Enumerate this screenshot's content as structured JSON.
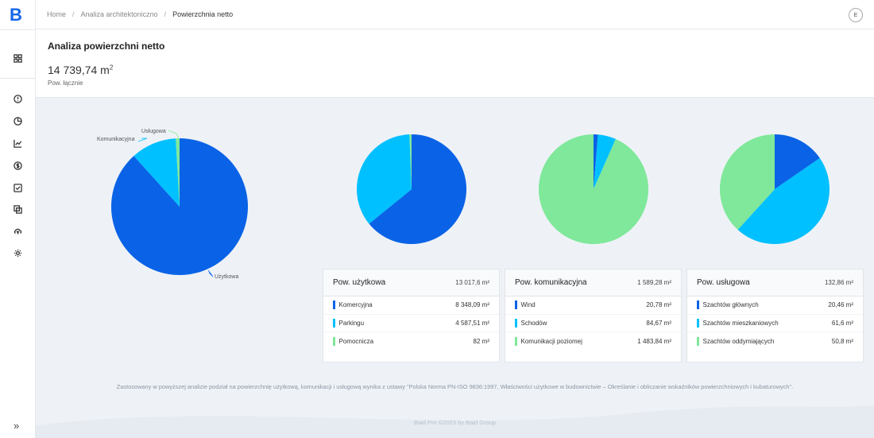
{
  "app": {
    "logo": "B"
  },
  "breadcrumb": [
    "Home",
    "Analiza architektoniczno",
    "Powierzchnia netto"
  ],
  "user": {
    "initial": "E"
  },
  "page": {
    "title": "Analiza powierzchni netto",
    "total_value": "14 739,74 m",
    "total_unit_sup": "2",
    "total_label": "Pow. łącznie"
  },
  "colors": {
    "blue": "#0a63e6",
    "cyan": "#00c0ff",
    "green": "#7fe89a"
  },
  "sidebar_icons": [
    "dashboard-icon",
    "info-icon",
    "pie-chart-icon",
    "line-chart-icon",
    "dollar-icon",
    "checkbox-icon",
    "copy-icon",
    "cloud-upload-icon",
    "settings-icon"
  ],
  "chart_data": [
    {
      "type": "pie",
      "labels": [
        "Użytkowa",
        "Komunikacyjna",
        "Usługowa"
      ],
      "values": [
        13017.6,
        1589.28,
        132.86
      ],
      "colors": [
        "#0a63e6",
        "#00c0ff",
        "#7fe89a"
      ]
    },
    {
      "type": "pie",
      "labels": [
        "Komercyjna",
        "Parkingu",
        "Pomocnicza"
      ],
      "values": [
        8348.09,
        4587.51,
        82
      ],
      "colors": [
        "#0a63e6",
        "#00c0ff",
        "#7fe89a"
      ]
    },
    {
      "type": "pie",
      "labels": [
        "Wind",
        "Schodów",
        "Komunikacji poziomej"
      ],
      "values": [
        20.78,
        84.67,
        1483.84
      ],
      "colors": [
        "#0a63e6",
        "#00c0ff",
        "#7fe89a"
      ]
    },
    {
      "type": "pie",
      "labels": [
        "Szachtów głównych",
        "Szachtów mieszkaniowych",
        "Szachtów oddymiających"
      ],
      "values": [
        20.46,
        61.6,
        50.8
      ],
      "colors": [
        "#0a63e6",
        "#00c0ff",
        "#7fe89a"
      ]
    }
  ],
  "cards": [
    {
      "title": "Pow. użytkowa",
      "total": "13 017,6 m²",
      "rows": [
        {
          "label": "Komercyjna",
          "value": "8 348,09 m²"
        },
        {
          "label": "Parkingu",
          "value": "4 587,51 m²"
        },
        {
          "label": "Pomocnicza",
          "value": "82 m²"
        }
      ]
    },
    {
      "title": "Pow. komunikacyjna",
      "total": "1 589,28 m²",
      "rows": [
        {
          "label": "Wind",
          "value": "20,78 m²"
        },
        {
          "label": "Schodów",
          "value": "84,67 m²"
        },
        {
          "label": "Komunikacji poziomej",
          "value": "1 483,84 m²"
        }
      ]
    },
    {
      "title": "Pow. usługowa",
      "total": "132,86 m²",
      "rows": [
        {
          "label": "Szachtów głównych",
          "value": "20,46 m²"
        },
        {
          "label": "Szachtów mieszkaniowych",
          "value": "61,6 m²"
        },
        {
          "label": "Szachtów oddymiających",
          "value": "50,8 m²"
        }
      ]
    }
  ],
  "note": "Zastosowany w powyższej analizie podział na powierzchnię użytkową, komunikacji i usługową wynika z ustawy \"Polska Norma PN-ISO 9836:1997, Właściwości użytkowe w budownictwie – Określanie i obliczanie wskaźników powierzchniowych i kubaturowych\".",
  "footer": "Baid Pro ©2023 by Baid Group"
}
